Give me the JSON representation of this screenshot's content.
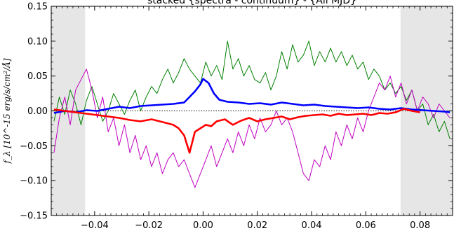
{
  "chart_data": {
    "type": "line",
    "title": "stacked {spectra - continuum} - {All MJD}",
    "xlabel": "",
    "ylabel": "f_λ [10^-15 erg/s/cm²/Å]",
    "xlim": [
      -0.056,
      0.092
    ],
    "ylim": [
      -0.15,
      0.15
    ],
    "x_ticks": [
      -0.04,
      -0.02,
      0.0,
      0.02,
      0.04,
      0.06,
      0.08
    ],
    "x_tick_labels": [
      "−0.04",
      "−0.02",
      "0.00",
      "0.02",
      "0.04",
      "0.06",
      "0.08"
    ],
    "y_ticks": [
      -0.15,
      -0.1,
      -0.05,
      0.0,
      0.05,
      0.1,
      0.15
    ],
    "y_tick_labels": [
      "−0.15",
      "−0.10",
      "−0.05",
      "0.00",
      "0.05",
      "0.10",
      "0.15"
    ],
    "shaded_regions": [
      [
        -0.056,
        -0.0435
      ],
      [
        0.0728,
        0.092
      ]
    ],
    "zero_line": {
      "y": 0,
      "style": "dotted"
    },
    "grid": false,
    "series": [
      {
        "color": "#008000",
        "width": 1,
        "x": [
          -0.055,
          -0.053,
          -0.051,
          -0.049,
          -0.047,
          -0.045,
          -0.043,
          -0.041,
          -0.039,
          -0.037,
          -0.035,
          -0.033,
          -0.031,
          -0.029,
          -0.027,
          -0.025,
          -0.023,
          -0.021,
          -0.019,
          -0.017,
          -0.015,
          -0.013,
          -0.011,
          -0.009,
          -0.007,
          -0.005,
          -0.003,
          -0.001,
          0.001,
          0.003,
          0.005,
          0.007,
          0.009,
          0.011,
          0.013,
          0.015,
          0.017,
          0.019,
          0.021,
          0.023,
          0.025,
          0.027,
          0.029,
          0.031,
          0.033,
          0.035,
          0.037,
          0.039,
          0.041,
          0.043,
          0.045,
          0.047,
          0.049,
          0.051,
          0.053,
          0.055,
          0.057,
          0.059,
          0.061,
          0.063,
          0.065,
          0.067,
          0.069,
          0.071,
          0.073,
          0.075,
          0.077,
          0.079,
          0.081,
          0.083,
          0.085,
          0.087,
          0.089,
          0.091
        ],
        "y": [
          -0.015,
          0.02,
          -0.005,
          0.03,
          0.01,
          -0.02,
          0.015,
          0.035,
          0.01,
          -0.015,
          0.0,
          0.025,
          0.01,
          -0.005,
          0.015,
          0.03,
          0.0,
          0.02,
          0.035,
          0.025,
          0.045,
          0.06,
          0.04,
          0.055,
          0.075,
          0.06,
          0.05,
          0.04,
          0.07,
          0.05,
          0.065,
          0.045,
          0.1,
          0.06,
          0.075,
          0.05,
          0.065,
          0.045,
          0.04,
          0.055,
          0.03,
          0.05,
          0.085,
          0.06,
          0.095,
          0.07,
          0.08,
          0.1,
          0.065,
          0.085,
          0.07,
          0.09,
          0.07,
          0.085,
          0.065,
          0.08,
          0.06,
          0.07,
          0.045,
          0.06,
          0.05,
          0.03,
          0.04,
          0.025,
          0.035,
          0.015,
          0.03,
          0.0,
          0.01,
          -0.02,
          -0.005,
          -0.03,
          -0.015,
          -0.04
        ]
      },
      {
        "color": "#c000c0",
        "width": 1,
        "x": [
          -0.055,
          -0.053,
          -0.051,
          -0.049,
          -0.047,
          -0.045,
          -0.043,
          -0.041,
          -0.039,
          -0.037,
          -0.035,
          -0.033,
          -0.031,
          -0.029,
          -0.027,
          -0.025,
          -0.023,
          -0.021,
          -0.019,
          -0.017,
          -0.015,
          -0.013,
          -0.011,
          -0.009,
          -0.007,
          -0.005,
          -0.003,
          -0.001,
          0.001,
          0.003,
          0.005,
          0.007,
          0.009,
          0.011,
          0.013,
          0.015,
          0.017,
          0.019,
          0.021,
          0.023,
          0.025,
          0.027,
          0.029,
          0.031,
          0.033,
          0.035,
          0.037,
          0.039,
          0.041,
          0.043,
          0.045,
          0.047,
          0.049,
          0.051,
          0.053,
          0.055,
          0.057,
          0.059,
          0.061,
          0.063,
          0.065,
          0.067,
          0.069,
          0.071,
          0.073,
          0.075,
          0.077,
          0.079,
          0.081,
          0.083,
          0.085,
          0.087,
          0.089,
          0.091
        ],
        "y": [
          -0.06,
          -0.01,
          0.02,
          -0.02,
          0.03,
          0.045,
          0.06,
          0.03,
          -0.01,
          0.02,
          -0.03,
          -0.01,
          -0.05,
          -0.02,
          -0.06,
          -0.035,
          -0.07,
          -0.05,
          -0.08,
          -0.06,
          -0.09,
          -0.07,
          -0.06,
          -0.08,
          -0.07,
          -0.09,
          -0.11,
          -0.09,
          -0.07,
          -0.05,
          -0.08,
          -0.06,
          -0.04,
          -0.06,
          -0.03,
          -0.05,
          -0.02,
          -0.04,
          -0.01,
          -0.03,
          -0.02,
          0.0,
          -0.02,
          -0.01,
          -0.03,
          -0.06,
          -0.09,
          -0.1,
          -0.07,
          -0.08,
          -0.05,
          -0.07,
          -0.03,
          -0.05,
          -0.02,
          -0.04,
          -0.01,
          -0.03,
          0.0,
          0.02,
          0.04,
          0.03,
          0.05,
          0.02,
          0.04,
          0.01,
          0.03,
          0.0,
          0.02,
          0.01,
          -0.01,
          0.01,
          0.0,
          -0.01
        ]
      },
      {
        "color": "#0000ff",
        "width": 2.6,
        "x": [
          -0.055,
          -0.051,
          -0.047,
          -0.043,
          -0.039,
          -0.035,
          -0.031,
          -0.027,
          -0.023,
          -0.019,
          -0.015,
          -0.011,
          -0.007,
          -0.005,
          -0.003,
          -0.001,
          0.0,
          0.002,
          0.004,
          0.006,
          0.009,
          0.013,
          0.017,
          0.021,
          0.025,
          0.029,
          0.033,
          0.037,
          0.041,
          0.045,
          0.049,
          0.053,
          0.057,
          0.061,
          0.065,
          0.069,
          0.073,
          0.077,
          0.081,
          0.085,
          0.089,
          0.091
        ],
        "y": [
          -0.003,
          0.0,
          -0.002,
          0.001,
          0.0,
          0.003,
          0.006,
          0.004,
          0.007,
          0.008,
          0.009,
          0.01,
          0.012,
          0.02,
          0.028,
          0.038,
          0.046,
          0.04,
          0.025,
          0.016,
          0.013,
          0.012,
          0.01,
          0.011,
          0.009,
          0.012,
          0.01,
          0.008,
          0.009,
          0.007,
          0.006,
          0.005,
          0.004,
          0.005,
          0.003,
          0.002,
          0.004,
          0.002,
          0.001,
          0.0,
          -0.001,
          -0.002
        ]
      },
      {
        "color": "#ff0000",
        "width": 2.6,
        "x": [
          -0.055,
          -0.051,
          -0.047,
          -0.043,
          -0.039,
          -0.035,
          -0.031,
          -0.027,
          -0.023,
          -0.019,
          -0.015,
          -0.011,
          -0.009,
          -0.007,
          -0.005,
          -0.003,
          -0.001,
          0.001,
          0.003,
          0.005,
          0.008,
          0.011,
          0.014,
          0.017,
          0.02,
          0.023,
          0.026,
          0.029,
          0.032,
          0.035,
          0.038,
          0.041,
          0.044,
          0.047,
          0.05,
          0.053,
          0.056,
          0.059,
          0.062,
          0.065,
          0.068,
          0.071,
          0.074,
          0.077,
          0.08
        ],
        "y": [
          0.002,
          0.0,
          -0.002,
          -0.004,
          -0.006,
          -0.008,
          -0.01,
          -0.013,
          -0.015,
          -0.012,
          -0.016,
          -0.02,
          -0.025,
          -0.035,
          -0.06,
          -0.03,
          -0.025,
          -0.02,
          -0.022,
          -0.015,
          -0.012,
          -0.02,
          -0.014,
          -0.01,
          -0.015,
          -0.012,
          -0.01,
          -0.008,
          -0.012,
          -0.009,
          -0.007,
          -0.006,
          -0.005,
          -0.007,
          -0.004,
          -0.006,
          -0.005,
          -0.004,
          -0.006,
          -0.003,
          -0.004,
          -0.002,
          0.003,
          0.0,
          -0.002
        ]
      }
    ]
  }
}
